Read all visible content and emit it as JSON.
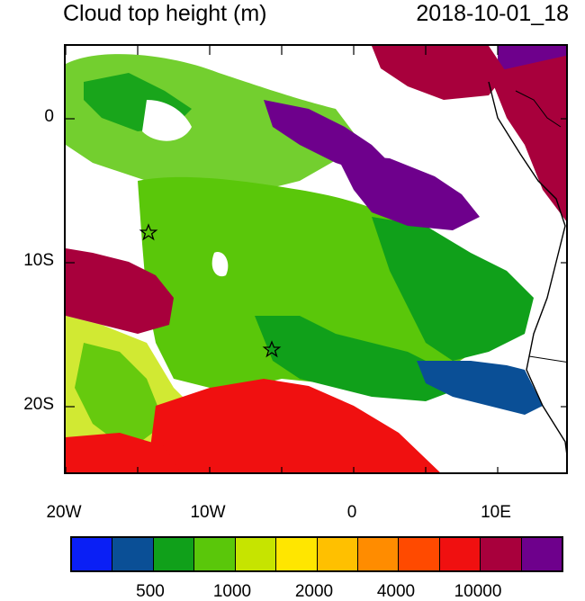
{
  "title": "Cloud top height (m)",
  "timestamp": "2018-10-01_18",
  "axes": {
    "lat_labels": [
      "0",
      "10S",
      "20S"
    ],
    "lon_labels": [
      "20W",
      "10W",
      "0",
      "10E"
    ]
  },
  "legend": {
    "colors": [
      "#0a1ff5",
      "#0a4f96",
      "#10a01a",
      "#5ac70a",
      "#c6e400",
      "#ffe600",
      "#ffc000",
      "#ff8c00",
      "#ff4a00",
      "#f01010",
      "#a8003c",
      "#6e008c"
    ],
    "labels": [
      "500",
      "1000",
      "2000",
      "4000",
      "10000"
    ]
  },
  "markers": [
    "station-star",
    "station-star"
  ]
}
